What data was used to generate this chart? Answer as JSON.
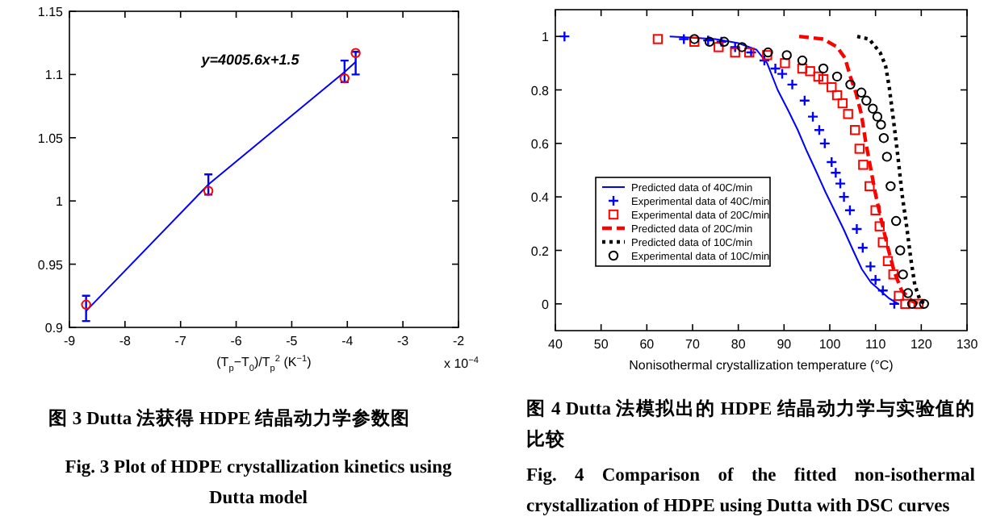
{
  "chart_data": [
    {
      "type": "line",
      "xlabel": "(T$_{p}$−T$_{0}$)/T$_{p}$$^{2}$ (K$^{−1}$)",
      "xlim": [
        -9,
        -2
      ],
      "xticks": [
        -9,
        -8,
        -7,
        -6,
        -5,
        -4,
        -3,
        -2
      ],
      "ylim": [
        0.9,
        1.15
      ],
      "yticks": [
        0.9,
        0.95,
        1,
        1.05,
        1.1,
        1.15
      ],
      "grid": false,
      "legend": false,
      "series": [
        {
          "type": "line",
          "color": "#0000ff",
          "line_style": "solid",
          "marker": "none",
          "x": [
            -8.7,
            -6.5,
            -4.05,
            -3.85
          ],
          "values": [
            0.913,
            1.013,
            1.102,
            1.11
          ],
          "errors": [
            [
              0.905,
              0.925
            ],
            [
              1.005,
              1.021
            ],
            [
              1.094,
              1.111
            ],
            [
              1.1,
              1.118
            ]
          ]
        },
        {
          "type": "scatter",
          "color": "#ff0000",
          "marker": "circle",
          "x": [
            -8.7,
            -6.5,
            -4.05,
            -3.85
          ],
          "values": [
            0.918,
            1.008,
            1.097,
            1.117
          ]
        }
      ],
      "annotations": [
        "y=4005.6x+1.5",
        "x 10$^{−4}$",
        "图 3 Dutta 法获得 HDPE 结晶动力学参数图",
        "Fig. 3 Plot of HDPE crystallization kinetics using Dutta model"
      ]
    },
    {
      "type": "line",
      "xlabel": "Nonisothermal crystallization temperature (°C)",
      "xlim": [
        40,
        130
      ],
      "xticks": [
        40,
        50,
        60,
        70,
        80,
        90,
        100,
        110,
        120,
        130
      ],
      "ylim": [
        -0.1,
        1.1
      ],
      "yticks": [
        0,
        0.2,
        0.4,
        0.6,
        0.8,
        1
      ],
      "grid": false,
      "legend": "bottom left",
      "series": [
        {
          "name": "Predicted data of 40C/min",
          "type": "line",
          "color": "#0000ff",
          "line_style": "solid",
          "marker": "none",
          "x": [
            65,
            70,
            75,
            80,
            84,
            86.3,
            88.6,
            91,
            93,
            95,
            96.9,
            99,
            101,
            103,
            105.1,
            107,
            109,
            111,
            113,
            115
          ],
          "values": [
            1,
            0.995,
            0.99,
            0.975,
            0.95,
            0.9,
            0.8,
            0.72,
            0.65,
            0.57,
            0.5,
            0.42,
            0.35,
            0.28,
            0.2,
            0.13,
            0.08,
            0.05,
            0.02,
            0
          ]
        },
        {
          "name": "Experimental data of 40C/min",
          "type": "scatter",
          "color": "#0000ff",
          "marker": "cross",
          "x": [
            42,
            68.1,
            73.4,
            76.3,
            79.3,
            82.8,
            85.7,
            88.1,
            89.6,
            91.8,
            94.5,
            96.3,
            97.7,
            98.9,
            100.4,
            101.3,
            102.3,
            103.1,
            104.4,
            105.9,
            107.2,
            108.9,
            110,
            111.6,
            114.1
          ],
          "values": [
            1,
            0.99,
            0.985,
            0.98,
            0.96,
            0.94,
            0.91,
            0.88,
            0.86,
            0.82,
            0.76,
            0.7,
            0.65,
            0.6,
            0.53,
            0.49,
            0.45,
            0.4,
            0.35,
            0.28,
            0.21,
            0.14,
            0.09,
            0.05,
            0
          ]
        },
        {
          "name": "Experimental data of 20C/min",
          "type": "scatter",
          "color": "#ff0000",
          "marker": "square",
          "x": [
            62.4,
            70.4,
            75.7,
            79.3,
            82.4,
            86.3,
            90.2,
            94,
            95.7,
            97.5,
            98.6,
            100.4,
            101.6,
            102.8,
            104,
            105.5,
            106.5,
            107.3,
            108.7,
            110,
            110.9,
            111.6,
            112.7,
            113.9,
            115.1,
            116.5,
            119.4
          ],
          "values": [
            0.99,
            0.98,
            0.96,
            0.94,
            0.94,
            0.93,
            0.9,
            0.88,
            0.87,
            0.85,
            0.84,
            0.81,
            0.78,
            0.75,
            0.71,
            0.65,
            0.58,
            0.52,
            0.44,
            0.35,
            0.29,
            0.23,
            0.16,
            0.11,
            0.03,
            0,
            0
          ]
        },
        {
          "name": "Predicted data of 20C/min",
          "type": "line",
          "color": "#ff0000",
          "line_style": "dashed",
          "marker": "none",
          "x": [
            93.3,
            98.6,
            101.6,
            103.3,
            104.5,
            105.7,
            106.9,
            107.8,
            108.9,
            110,
            111.3,
            112.7,
            114.1,
            115.7,
            118,
            119.6
          ],
          "values": [
            1,
            0.99,
            0.96,
            0.92,
            0.85,
            0.79,
            0.71,
            0.61,
            0.51,
            0.41,
            0.31,
            0.21,
            0.12,
            0.05,
            0.01,
            0
          ]
        },
        {
          "name": "Predicted data of 10C/min",
          "type": "line",
          "color": "#000000",
          "line_style": "dotted",
          "marker": "none",
          "x": [
            106,
            108.6,
            111,
            112.2,
            113,
            113.9,
            114.9,
            115.8,
            116.8,
            117.7,
            118.6,
            119.8,
            121
          ],
          "values": [
            1,
            0.99,
            0.94,
            0.89,
            0.81,
            0.69,
            0.55,
            0.41,
            0.29,
            0.17,
            0.07,
            0.01,
            0
          ]
        },
        {
          "name": "Experimental data of 10C/min",
          "type": "scatter",
          "color": "#000000",
          "marker": "circle",
          "x": [
            70.4,
            73.7,
            76.9,
            80.8,
            86.5,
            90.6,
            94,
            98.6,
            101.6,
            104.5,
            106.9,
            108,
            109.4,
            110.4,
            111.2,
            111.8,
            112.5,
            113.3,
            114.5,
            115.4,
            116,
            117.1,
            118,
            120.6
          ],
          "values": [
            0.99,
            0.98,
            0.98,
            0.96,
            0.94,
            0.93,
            0.91,
            0.88,
            0.85,
            0.82,
            0.79,
            0.76,
            0.73,
            0.7,
            0.67,
            0.62,
            0.55,
            0.44,
            0.31,
            0.2,
            0.11,
            0.04,
            0,
            0
          ]
        }
      ],
      "annotations": [
        "图 4 Dutta 法模拟出的 HDPE 结晶动力学与实验值的比较",
        "Fig. 4 Comparison of the fitted non-isothermal crystallization of HDPE using Dutta with DSC curves"
      ]
    }
  ]
}
